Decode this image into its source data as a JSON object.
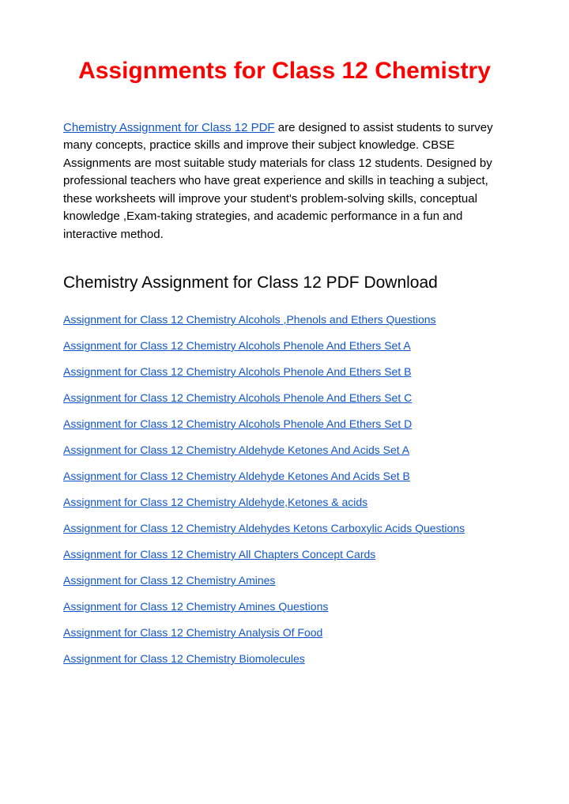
{
  "title": "Assignments for Class 12 Chemistry",
  "title_color": "#ff0000",
  "title_fontsize": 30,
  "intro": {
    "link_text": "Chemistry Assignment for Class 12 PDF",
    "link_color": "#1155cc",
    "body_text": " are designed to assist students to survey many concepts, practice skills and improve their subject knowledge. CBSE Assignments are most suitable study materials for class 12 students. Designed by professional  teachers who have great experience and skills in teaching a subject, these worksheets will improve your student's problem-solving skills, conceptual knowledge ,Exam-taking strategies, and academic performance in a fun and interactive method.",
    "fontsize": 15,
    "text_color": "#000000"
  },
  "section_heading": {
    "text": "Chemistry Assignment for Class 12 PDF Download",
    "fontsize": 21
  },
  "links": {
    "color": "#1155cc",
    "fontsize": 14,
    "items": [
      "Assignment for Class 12 Chemistry Alcohols ,Phenols and Ethers Questions",
      "Assignment for Class 12 Chemistry Alcohols Phenole And Ethers Set A",
      "Assignment for Class 12 Chemistry Alcohols Phenole And Ethers Set B",
      "Assignment for Class 12 Chemistry Alcohols Phenole And Ethers Set C",
      "Assignment for Class 12 Chemistry Alcohols Phenole And Ethers Set D",
      "Assignment for Class 12 Chemistry Aldehyde Ketones And Acids Set A",
      "Assignment for Class 12 Chemistry Aldehyde Ketones And Acids Set B",
      "Assignment for Class 12 Chemistry Aldehyde,Ketones & acids",
      "Assignment for Class 12 Chemistry Aldehydes Ketons Carboxylic Acids Questions",
      "Assignment for Class 12 Chemistry All Chapters Concept Cards",
      "Assignment for Class 12 Chemistry Amines",
      "Assignment for Class 12 Chemistry Amines Questions",
      "Assignment for Class 12 Chemistry Analysis Of Food",
      "Assignment for Class 12 Chemistry Biomolecules"
    ]
  }
}
